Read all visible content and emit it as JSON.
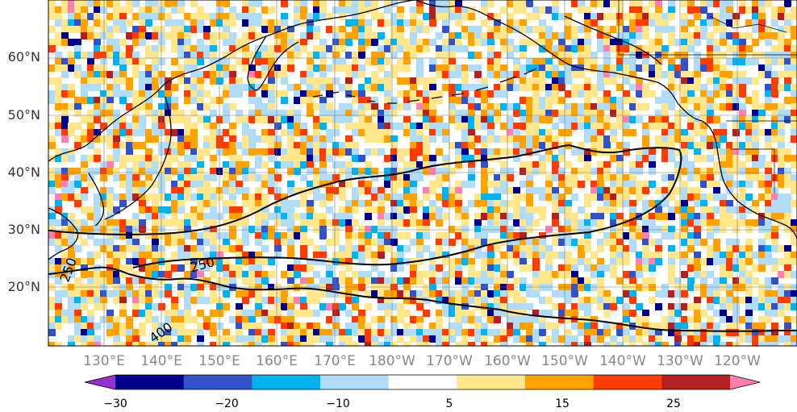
{
  "map": {
    "latitude_labels": [
      "60°N",
      "50°N",
      "40°N",
      "30°N",
      "20°N"
    ],
    "longitude_labels": [
      "130°E",
      "140°E",
      "150°E",
      "160°E",
      "170°E",
      "180°W",
      "170°W",
      "160°W",
      "150°W",
      "140°W",
      "130°W",
      "120°W"
    ],
    "contour_labels": [
      "250",
      "250",
      "400"
    ],
    "colors": {
      "lat_label": "#333333",
      "lon_label": "#888888",
      "coast": "#000000",
      "gridline": "#777777",
      "contour": "#000000"
    }
  },
  "colorbar": {
    "tick_labels": [
      "−30",
      "−20",
      "−10",
      "5",
      "15",
      "25"
    ],
    "colors": [
      "#9a2fd1",
      "#00008b",
      "#3252c8",
      "#00b3f0",
      "#b0dcf7",
      "#ffffff",
      "#ffe68a",
      "#ffa200",
      "#ff3c00",
      "#b02020",
      "#ff80b0"
    ]
  }
}
